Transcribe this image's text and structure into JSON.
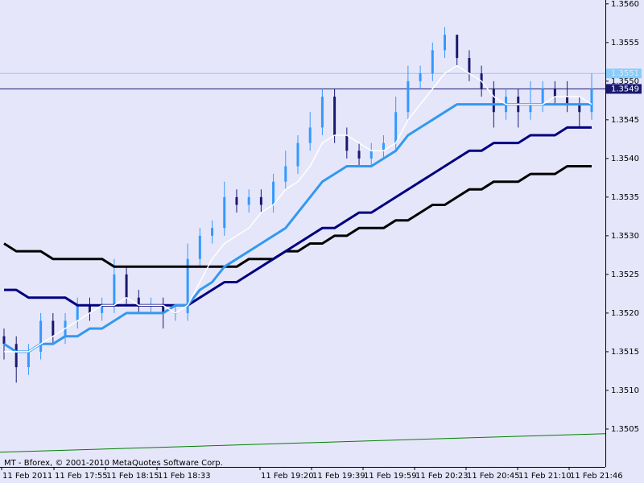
{
  "chart_data": {
    "type": "candlestick",
    "copyright": "MT - Bforex, © 2001-2010 MetaQuotes Software Corp.",
    "x_labels": [
      "11 Feb 2011",
      "11 Feb 17:55",
      "11 Feb 18:15",
      "11 Feb 18:33",
      "11 Feb 19:20",
      "11 Feb 19:39",
      "11 Feb 19:59",
      "11 Feb 20:23",
      "11 Feb 20:45",
      "11 Feb 21:10",
      "11 Feb 21:46"
    ],
    "ylim": [
      1.35001,
      1.35605
    ],
    "yticks": [
      {
        "value": 1.356,
        "label": "1.3560"
      },
      1.3555,
      {
        "value": 1.355,
        "label": "1.3550"
      },
      1.3545,
      {
        "value": 1.354,
        "label": "1.3540"
      },
      1.3535,
      {
        "value": 1.353,
        "label": "1.3530"
      },
      1.3525,
      {
        "value": 1.352,
        "label": "1.3520"
      },
      1.3515,
      {
        "value": 1.351,
        "label": "1.3510"
      },
      1.3505
    ],
    "up_color": "#3399ff",
    "down_color": "#191970",
    "open": [
      1.3517,
      1.3516,
      1.3513,
      1.3515,
      1.3519,
      1.3517,
      1.3519,
      1.3521,
      1.352,
      1.3521,
      1.3525,
      1.3522,
      1.3521,
      1.3521,
      1.352,
      1.352,
      1.3527,
      1.353,
      1.3531,
      1.3535,
      1.3534,
      1.3535,
      1.3534,
      1.3537,
      1.3539,
      1.3542,
      1.3544,
      1.3548,
      1.3543,
      1.3541,
      1.354,
      1.3541,
      1.3542,
      1.3546,
      1.355,
      1.3551,
      1.3554,
      1.3556,
      1.3553,
      1.3551,
      1.3549,
      1.3546,
      1.3548,
      1.3546,
      1.3547,
      1.3549,
      1.3548,
      1.3547,
      1.3546
    ],
    "high": [
      1.3518,
      1.3517,
      1.3516,
      1.352,
      1.352,
      1.352,
      1.3522,
      1.3522,
      1.3522,
      1.3527,
      1.3526,
      1.3523,
      1.3522,
      1.3522,
      1.3521,
      1.3529,
      1.3531,
      1.3532,
      1.3537,
      1.3536,
      1.3536,
      1.3536,
      1.3538,
      1.3541,
      1.3543,
      1.3546,
      1.3549,
      1.3549,
      1.3544,
      1.3542,
      1.3542,
      1.3543,
      1.3548,
      1.3552,
      1.3552,
      1.3555,
      1.3557,
      1.3556,
      1.3554,
      1.3552,
      1.355,
      1.3549,
      1.3549,
      1.355,
      1.355,
      1.355,
      1.355,
      1.3548,
      1.3551
    ],
    "low": [
      1.3514,
      1.3511,
      1.3512,
      1.3514,
      1.3516,
      1.3516,
      1.3518,
      1.3519,
      1.3519,
      1.352,
      1.3521,
      1.352,
      1.352,
      1.3518,
      1.3519,
      1.3519,
      1.3526,
      1.3529,
      1.353,
      1.3533,
      1.3533,
      1.3533,
      1.3533,
      1.3536,
      1.3538,
      1.3541,
      1.3543,
      1.3542,
      1.354,
      1.3539,
      1.3539,
      1.354,
      1.3541,
      1.3545,
      1.3549,
      1.355,
      1.3553,
      1.3552,
      1.355,
      1.3548,
      1.3544,
      1.3545,
      1.3544,
      1.3545,
      1.3546,
      1.3547,
      1.3546,
      1.3544,
      1.3545
    ],
    "close": [
      1.3516,
      1.3513,
      1.3515,
      1.3519,
      1.3517,
      1.3519,
      1.3521,
      1.352,
      1.3521,
      1.3525,
      1.3522,
      1.3521,
      1.3521,
      1.352,
      1.352,
      1.3527,
      1.353,
      1.3531,
      1.3535,
      1.3534,
      1.3535,
      1.3534,
      1.3537,
      1.3539,
      1.3542,
      1.3544,
      1.3548,
      1.3543,
      1.3541,
      1.354,
      1.3541,
      1.3542,
      1.3546,
      1.355,
      1.3551,
      1.3554,
      1.3556,
      1.3553,
      1.3551,
      1.3549,
      1.3546,
      1.3548,
      1.3546,
      1.3547,
      1.3549,
      1.3548,
      1.3547,
      1.3546,
      1.3549
    ],
    "series": [
      {
        "color": "#000000",
        "width": 3,
        "values": [
          1.3529,
          1.3528,
          1.3528,
          1.3528,
          1.3527,
          1.3527,
          1.3527,
          1.3527,
          1.3527,
          1.3526,
          1.3526,
          1.3526,
          1.3526,
          1.3526,
          1.3526,
          1.3526,
          1.3526,
          1.3526,
          1.3526,
          1.3526,
          1.3527,
          1.3527,
          1.3527,
          1.3528,
          1.3528,
          1.3529,
          1.3529,
          1.353,
          1.353,
          1.3531,
          1.3531,
          1.3531,
          1.3532,
          1.3532,
          1.3533,
          1.3534,
          1.3534,
          1.3535,
          1.3536,
          1.3536,
          1.3537,
          1.3537,
          1.3537,
          1.3538,
          1.3538,
          1.3538,
          1.3539,
          1.3539,
          1.3539
        ]
      },
      {
        "color": "#000080",
        "width": 3,
        "values": [
          1.3523,
          1.3523,
          1.3522,
          1.3522,
          1.3522,
          1.3522,
          1.3521,
          1.3521,
          1.3521,
          1.3521,
          1.3521,
          1.3521,
          1.3521,
          1.3521,
          1.3521,
          1.3521,
          1.3522,
          1.3523,
          1.3524,
          1.3524,
          1.3525,
          1.3526,
          1.3527,
          1.3528,
          1.3529,
          1.353,
          1.3531,
          1.3531,
          1.3532,
          1.3533,
          1.3533,
          1.3534,
          1.3535,
          1.3536,
          1.3537,
          1.3538,
          1.3539,
          1.354,
          1.3541,
          1.3541,
          1.3542,
          1.3542,
          1.3542,
          1.3543,
          1.3543,
          1.3543,
          1.3544,
          1.3544,
          1.3544
        ]
      },
      {
        "color": "#3399ee",
        "width": 3,
        "values": [
          1.3516,
          1.3515,
          1.3515,
          1.3516,
          1.3516,
          1.3517,
          1.3517,
          1.3518,
          1.3518,
          1.3519,
          1.352,
          1.352,
          1.352,
          1.352,
          1.3521,
          1.3521,
          1.3523,
          1.3524,
          1.3526,
          1.3527,
          1.3528,
          1.3529,
          1.353,
          1.3531,
          1.3533,
          1.3535,
          1.3537,
          1.3538,
          1.3539,
          1.3539,
          1.3539,
          1.354,
          1.3541,
          1.3543,
          1.3544,
          1.3545,
          1.3546,
          1.3547,
          1.3547,
          1.3547,
          1.3547,
          1.3547,
          1.3547,
          1.3547,
          1.3547,
          1.3547,
          1.3547,
          1.3547,
          1.3547
        ]
      },
      {
        "color": "#ffffff",
        "width": 1.5,
        "values": [
          1.3515,
          1.3515,
          1.3515,
          1.3516,
          1.3517,
          1.3518,
          1.3519,
          1.352,
          1.3521,
          1.3521,
          1.3522,
          1.3521,
          1.3521,
          1.3521,
          1.352,
          1.3521,
          1.3524,
          1.3527,
          1.3529,
          1.353,
          1.3531,
          1.3533,
          1.3534,
          1.3536,
          1.3537,
          1.3539,
          1.3542,
          1.3543,
          1.3543,
          1.3542,
          1.3541,
          1.3541,
          1.3542,
          1.3545,
          1.3547,
          1.3549,
          1.3551,
          1.3552,
          1.3551,
          1.355,
          1.3548,
          1.3547,
          1.3547,
          1.3547,
          1.3547,
          1.3548,
          1.3548,
          1.3548,
          1.3547
        ]
      }
    ],
    "trend_line": {
      "color": "#008000",
      "values": [
        1.3502,
        1.35044
      ]
    },
    "price_lines": [
      {
        "value": 1.3551,
        "color": "#87cefa"
      },
      {
        "value": 1.3549,
        "color": "#191970"
      }
    ]
  }
}
